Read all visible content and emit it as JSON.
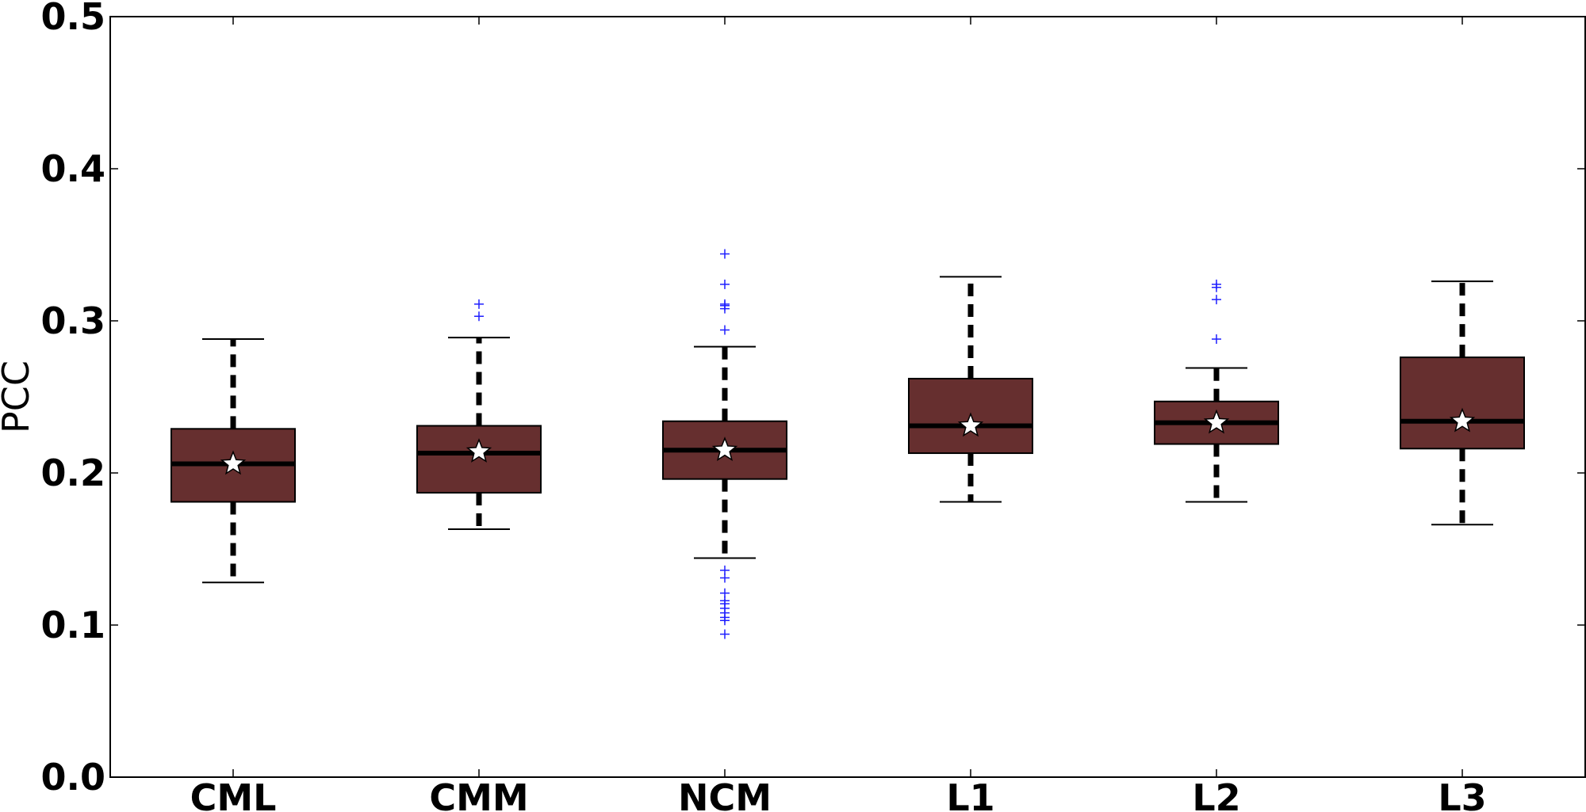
{
  "chart_data": {
    "type": "box",
    "title": "",
    "xlabel": "",
    "ylabel": "PCC",
    "ylim": [
      0.0,
      0.5
    ],
    "yticks": [
      {
        "value": 0.0,
        "label": "0.0"
      },
      {
        "value": 0.1,
        "label": "0.1"
      },
      {
        "value": 0.2,
        "label": "0.2"
      },
      {
        "value": 0.3,
        "label": "0.3"
      },
      {
        "value": 0.4,
        "label": "0.4"
      },
      {
        "value": 0.5,
        "label": "0.5"
      }
    ],
    "grid": false,
    "legend": "none",
    "categories": [
      "CML",
      "CMM",
      "NCM",
      "L1",
      "L2",
      "L3"
    ],
    "boxes": [
      {
        "category": "CML",
        "whisker_low": 0.128,
        "q1": 0.181,
        "median": 0.206,
        "q3": 0.229,
        "whisker_high": 0.288,
        "mean": 0.206,
        "outliers": []
      },
      {
        "category": "CMM",
        "whisker_low": 0.163,
        "q1": 0.187,
        "median": 0.213,
        "q3": 0.231,
        "whisker_high": 0.289,
        "mean": 0.214,
        "outliers": [
          0.303,
          0.311
        ]
      },
      {
        "category": "NCM",
        "whisker_low": 0.144,
        "q1": 0.196,
        "median": 0.215,
        "q3": 0.234,
        "whisker_high": 0.283,
        "mean": 0.215,
        "outliers": [
          0.094,
          0.103,
          0.105,
          0.108,
          0.111,
          0.114,
          0.116,
          0.121,
          0.131,
          0.136,
          0.294,
          0.308,
          0.31,
          0.311,
          0.324,
          0.344
        ]
      },
      {
        "category": "L1",
        "whisker_low": 0.181,
        "q1": 0.213,
        "median": 0.231,
        "q3": 0.262,
        "whisker_high": 0.329,
        "mean": 0.231,
        "outliers": []
      },
      {
        "category": "L2",
        "whisker_low": 0.181,
        "q1": 0.219,
        "median": 0.233,
        "q3": 0.247,
        "whisker_high": 0.269,
        "mean": 0.233,
        "outliers": [
          0.288,
          0.314,
          0.322,
          0.324
        ]
      },
      {
        "category": "L3",
        "whisker_low": 0.166,
        "q1": 0.216,
        "median": 0.234,
        "q3": 0.276,
        "whisker_high": 0.326,
        "mean": 0.234,
        "outliers": []
      }
    ],
    "colors": {
      "box_fill": "#662f2f",
      "box_edge": "#000000",
      "median": "#000000",
      "whisker": "#000000",
      "outlier": "#1f1fff",
      "mean_marker_fill": "#ffffff",
      "mean_marker_edge": "#000000"
    },
    "mean_marker": "star-icon",
    "outlier_marker": "plus-icon"
  }
}
